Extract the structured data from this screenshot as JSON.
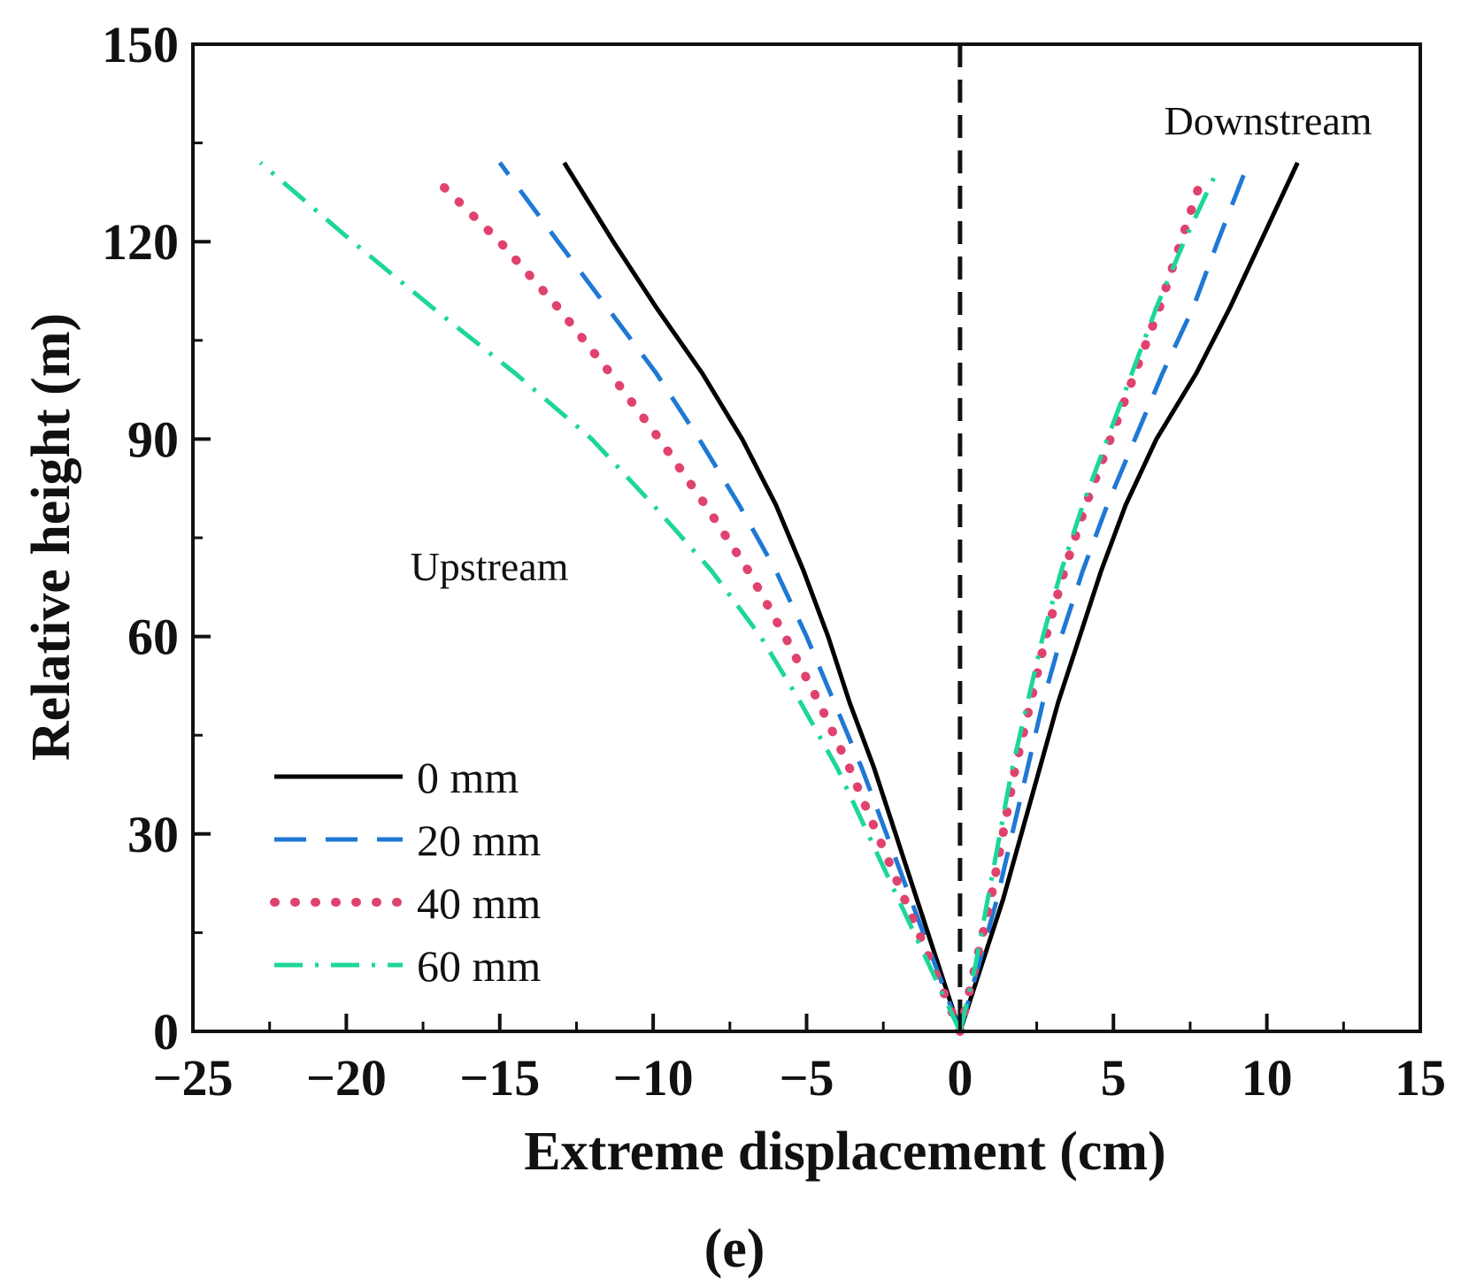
{
  "chart_data": {
    "type": "line",
    "xlabel": "Extreme displacement (cm)",
    "ylabel": "Relative height (m)",
    "panel_label": "(e)",
    "xlim": [
      -25,
      15
    ],
    "ylim": [
      0,
      150
    ],
    "xticks": [
      -25,
      -20,
      -15,
      -10,
      -5,
      0,
      5,
      10,
      15
    ],
    "yticks": [
      0,
      30,
      60,
      90,
      120,
      150
    ],
    "xtick_labels": [
      "−25",
      "−20",
      "−15",
      "−10",
      "−5",
      "0",
      "5",
      "10",
      "15"
    ],
    "ytick_labels": [
      "0",
      "30",
      "60",
      "90",
      "120",
      "150"
    ],
    "annotations": {
      "upstream": "Upstream",
      "downstream": "Downstream"
    },
    "reference_line": {
      "x": 0,
      "style": "dashed",
      "color": "#111111"
    },
    "legend_position": "lower-left",
    "series": [
      {
        "name": "0 mm",
        "color": "#000000",
        "dash": "solid",
        "upstream": {
          "y": [
            0,
            10,
            20,
            30,
            40,
            50,
            60,
            70,
            80,
            90,
            100,
            110,
            120,
            132
          ],
          "x": [
            0,
            -0.7,
            -1.4,
            -2.1,
            -2.8,
            -3.6,
            -4.3,
            -5.1,
            -6.0,
            -7.1,
            -8.4,
            -9.9,
            -11.3,
            -12.9
          ]
        },
        "downstream": {
          "y": [
            0,
            10,
            20,
            30,
            40,
            50,
            60,
            70,
            80,
            90,
            100,
            110,
            120,
            132
          ],
          "x": [
            0,
            0.7,
            1.4,
            2.0,
            2.6,
            3.2,
            3.9,
            4.6,
            5.4,
            6.4,
            7.7,
            8.8,
            9.8,
            11.0
          ]
        }
      },
      {
        "name": "20 mm",
        "color": "#1f78d4",
        "dash": "long-dash",
        "upstream": {
          "y": [
            0,
            10,
            20,
            30,
            40,
            50,
            60,
            70,
            80,
            90,
            100,
            110,
            120,
            132
          ],
          "x": [
            0,
            -0.8,
            -1.6,
            -2.4,
            -3.2,
            -4.1,
            -5.0,
            -6.0,
            -7.2,
            -8.5,
            -9.9,
            -11.5,
            -13.1,
            -15.0
          ]
        },
        "downstream": {
          "y": [
            0,
            10,
            20,
            30,
            40,
            50,
            60,
            70,
            80,
            90,
            100,
            110,
            120,
            132
          ],
          "x": [
            0,
            0.6,
            1.2,
            1.7,
            2.2,
            2.7,
            3.3,
            4.0,
            4.8,
            5.7,
            6.6,
            7.6,
            8.4,
            9.4
          ]
        }
      },
      {
        "name": "40 mm",
        "color": "#e0426e",
        "dash": "dotted",
        "upstream": {
          "y": [
            0,
            10,
            20,
            30,
            40,
            50,
            60,
            70,
            80,
            90,
            100,
            110,
            120,
            130
          ],
          "x": [
            0,
            -0.9,
            -1.8,
            -2.7,
            -3.6,
            -4.6,
            -5.7,
            -6.9,
            -8.3,
            -9.8,
            -11.4,
            -13.1,
            -15.0,
            -17.2
          ]
        },
        "downstream": {
          "y": [
            0,
            10,
            20,
            30,
            40,
            50,
            60,
            70,
            80,
            90,
            100,
            110,
            120,
            130
          ],
          "x": [
            0,
            0.5,
            1.0,
            1.4,
            1.8,
            2.3,
            2.8,
            3.4,
            4.1,
            4.9,
            5.7,
            6.5,
            7.2,
            7.9
          ]
        }
      },
      {
        "name": "60 mm",
        "color": "#1cd69a",
        "dash": "dash-dot",
        "upstream": {
          "y": [
            0,
            10,
            20,
            30,
            40,
            50,
            60,
            70,
            80,
            90,
            100,
            110,
            120,
            132
          ],
          "x": [
            0,
            -1.0,
            -2.0,
            -3.0,
            -4.0,
            -5.2,
            -6.5,
            -8.1,
            -10.0,
            -12.0,
            -14.5,
            -17.2,
            -19.8,
            -22.8
          ]
        },
        "downstream": {
          "y": [
            0,
            10,
            20,
            30,
            40,
            50,
            60,
            70,
            80,
            90,
            100,
            110,
            120,
            130
          ],
          "x": [
            0,
            0.5,
            0.9,
            1.3,
            1.7,
            2.2,
            2.7,
            3.3,
            4.0,
            4.8,
            5.6,
            6.4,
            7.3,
            8.3
          ]
        }
      }
    ]
  }
}
